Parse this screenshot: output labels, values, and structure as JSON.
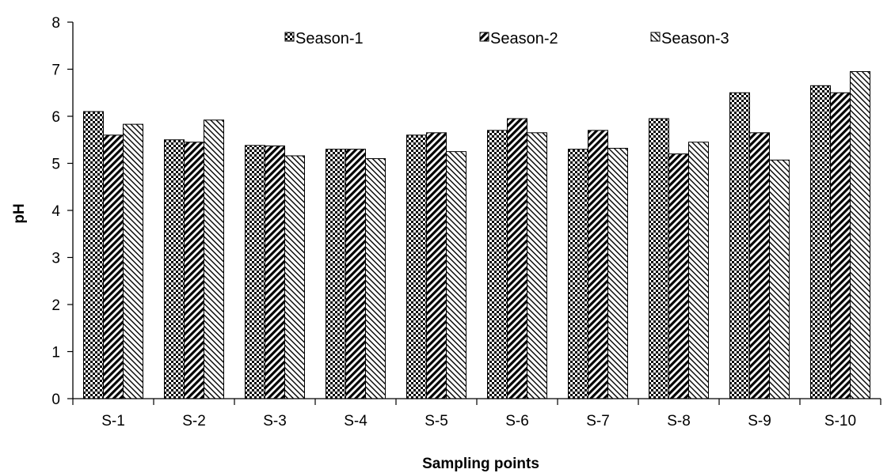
{
  "chart_data": {
    "type": "bar",
    "title": "",
    "xlabel": "Sampling points",
    "ylabel": "pH",
    "ylim": [
      0,
      8
    ],
    "yticks": [
      0,
      1,
      2,
      3,
      4,
      5,
      6,
      7,
      8
    ],
    "grid": false,
    "legend_position": "top-center",
    "categories": [
      "S-1",
      "S-2",
      "S-3",
      "S-4",
      "S-5",
      "S-6",
      "S-7",
      "S-8",
      "S-9",
      "S-10"
    ],
    "series": [
      {
        "name": "Season-1",
        "pattern": "checker",
        "values": [
          6.1,
          5.5,
          5.38,
          5.3,
          5.6,
          5.7,
          5.3,
          5.95,
          6.5,
          6.65
        ]
      },
      {
        "name": "Season-2",
        "pattern": "dense-diagonal",
        "values": [
          5.6,
          5.45,
          5.37,
          5.3,
          5.65,
          5.95,
          5.7,
          5.2,
          5.65,
          6.5
        ]
      },
      {
        "name": "Season-3",
        "pattern": "light-diagonal",
        "values": [
          5.83,
          5.92,
          5.16,
          5.1,
          5.25,
          5.65,
          5.32,
          5.45,
          5.07,
          6.95
        ]
      }
    ]
  }
}
